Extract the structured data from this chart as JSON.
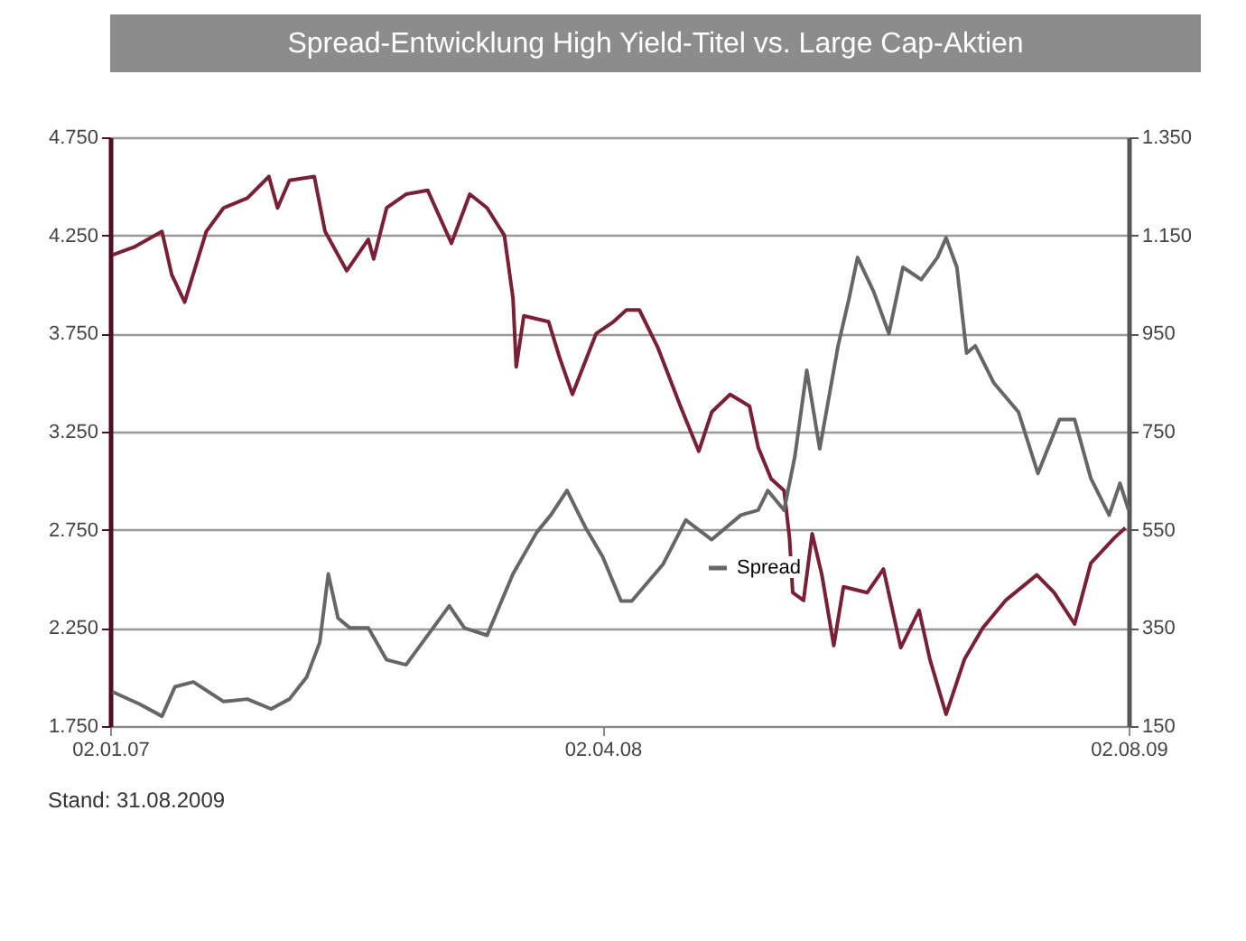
{
  "chart_data": {
    "type": "line",
    "title": "Spread-Entwicklung High Yield-Titel vs. Large Cap-Aktien",
    "annotations": [
      "Stand: 31.08.2009"
    ],
    "xlim": [
      "2007-01-02",
      "2009-08-02"
    ],
    "xticks": [
      {
        "value": "2007-01-02",
        "label": "02.01.07"
      },
      {
        "value": "2008-04-02",
        "label": "02.04.08"
      },
      {
        "value": "2009-08-02",
        "label": "02.08.09"
      }
    ],
    "ylim": [
      1750,
      4750
    ],
    "yticks": [
      {
        "value": 1750,
        "label": "1.750"
      },
      {
        "value": 2250,
        "label": "2.250"
      },
      {
        "value": 2750,
        "label": "2.750"
      },
      {
        "value": 3250,
        "label": "3.250"
      },
      {
        "value": 3750,
        "label": "3.750"
      },
      {
        "value": 4250,
        "label": "4.250"
      },
      {
        "value": 4750,
        "label": "4.750"
      }
    ],
    "y2lim": [
      150,
      1350
    ],
    "y2ticks": [
      150,
      350,
      550,
      750,
      950,
      {
        "value": 1150,
        "label": "1.150"
      },
      {
        "value": 1350,
        "label": "1.350"
      }
    ],
    "grid": "y",
    "legend": "bottom",
    "series": [
      {
        "color": "#7a1f35",
        "x": [
          "2007-01-04",
          "2007-01-24",
          "2007-02-19",
          "2007-02-28",
          "2007-03-12",
          "2007-04-01",
          "2007-04-17",
          "2007-05-09",
          "2007-05-29",
          "2007-06-06",
          "2007-06-17",
          "2007-07-10",
          "2007-07-20",
          "2007-08-09",
          "2007-08-29",
          "2007-09-03",
          "2007-09-15",
          "2007-10-03",
          "2007-10-23",
          "2007-11-14",
          "2007-12-01",
          "2007-12-17",
          "2008-01-02",
          "2008-01-10",
          "2008-01-13",
          "2008-01-20",
          "2008-02-12",
          "2008-02-22",
          "2008-03-05",
          "2008-03-27",
          "2008-04-12",
          "2008-04-24",
          "2008-05-06",
          "2008-05-23",
          "2008-06-13",
          "2008-06-30",
          "2008-07-12",
          "2008-07-29",
          "2008-08-16",
          "2008-08-24",
          "2008-09-05",
          "2008-09-17",
          "2008-09-22",
          "2008-09-25",
          "2008-10-05",
          "2008-10-13",
          "2008-10-22",
          "2008-11-02",
          "2008-11-11",
          "2008-12-03",
          "2008-12-18",
          "2009-01-03",
          "2009-01-20",
          "2009-01-30",
          "2009-02-14",
          "2009-03-03",
          "2009-03-20",
          "2009-04-10",
          "2009-05-09",
          "2009-05-25",
          "2009-06-13",
          "2009-06-28",
          "2009-07-20",
          "2009-07-30"
        ],
        "values": [
          4150,
          4190,
          4270,
          4050,
          3910,
          4270,
          4390,
          4440,
          4550,
          4390,
          4530,
          4550,
          4270,
          4070,
          4230,
          4130,
          4390,
          4460,
          4480,
          4210,
          4460,
          4390,
          4250,
          3930,
          3580,
          3840,
          3810,
          3630,
          3440,
          3750,
          3810,
          3870,
          3870,
          3680,
          3380,
          3150,
          3350,
          3440,
          3380,
          3170,
          3010,
          2950,
          2710,
          2430,
          2390,
          2730,
          2520,
          2160,
          2460,
          2430,
          2550,
          2150,
          2340,
          2090,
          1810,
          2090,
          2250,
          2390,
          2520,
          2430,
          2270,
          2580,
          2710,
          2760
        ]
      },
      {
        "name": "Spread",
        "color": "#666666",
        "axis": "y2",
        "x": [
          "2007-01-04",
          "2007-01-29",
          "2007-02-19",
          "2007-03-03",
          "2007-03-20",
          "2007-04-17",
          "2007-05-09",
          "2007-05-31",
          "2007-06-17",
          "2007-07-03",
          "2007-07-15",
          "2007-07-23",
          "2007-08-01",
          "2007-08-12",
          "2007-08-29",
          "2007-09-15",
          "2007-10-03",
          "2007-10-18",
          "2007-11-12",
          "2007-11-26",
          "2007-12-17",
          "2008-01-10",
          "2008-02-01",
          "2008-02-14",
          "2008-02-29",
          "2008-03-17",
          "2008-04-02",
          "2008-04-19",
          "2008-04-29",
          "2008-05-28",
          "2008-06-18",
          "2008-07-12",
          "2008-08-08",
          "2008-08-24",
          "2008-09-02",
          "2008-09-17",
          "2008-09-27",
          "2008-10-08",
          "2008-10-20",
          "2008-11-06",
          "2008-11-16",
          "2008-11-24",
          "2008-12-09",
          "2008-12-23",
          "2009-01-05",
          "2009-01-22",
          "2009-02-06",
          "2009-02-14",
          "2009-02-24",
          "2009-03-05",
          "2009-03-13",
          "2009-03-30",
          "2009-04-22",
          "2009-05-10",
          "2009-05-30",
          "2009-06-13",
          "2009-06-28",
          "2009-07-15",
          "2009-07-25",
          "2009-08-02"
        ],
        "values": [
          220,
          195,
          170,
          230,
          240,
          200,
          205,
          185,
          205,
          250,
          320,
          460,
          370,
          350,
          350,
          285,
          275,
          320,
          395,
          350,
          335,
          460,
          545,
          580,
          630,
          555,
          495,
          405,
          405,
          480,
          570,
          530,
          580,
          590,
          630,
          590,
          700,
          875,
          715,
          925,
          1020,
          1105,
          1035,
          950,
          1085,
          1060,
          1105,
          1145,
          1085,
          910,
          925,
          850,
          790,
          665,
          775,
          775,
          655,
          580,
          645,
          590
        ]
      }
    ]
  }
}
